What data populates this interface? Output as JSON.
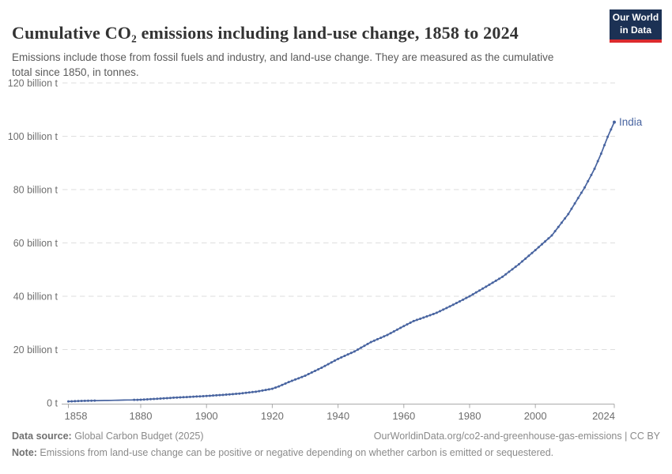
{
  "header": {
    "title": "Cumulative CO₂ emissions including land-use change, 1858 to 2024",
    "subtitle": "Emissions include those from fossil fuels and industry, and land-use change. They are measured as the cumulative total since 1850, in tonnes.",
    "logo": {
      "line1": "Our World",
      "line2": "in Data",
      "bg_color": "#1c3154",
      "stripe_color": "#dc2a2d"
    }
  },
  "chart_data": {
    "type": "line",
    "title": "Cumulative CO₂ emissions including land-use change, 1858 to 2024",
    "xlabel": "",
    "ylabel": "",
    "xlim": [
      1858,
      2024
    ],
    "ylim": [
      0,
      120
    ],
    "grid": "horizontal-dashed",
    "grid_color": "#dedede",
    "axis_color": "#a9a9a9",
    "tick_label_color": "#6e6e6e",
    "x_ticks": [
      1858,
      1880,
      1900,
      1920,
      1940,
      1960,
      1980,
      2000,
      2024
    ],
    "y_ticks": [
      {
        "value": 0,
        "label": "0 t"
      },
      {
        "value": 20,
        "label": "20 billion t"
      },
      {
        "value": 40,
        "label": "40 billion t"
      },
      {
        "value": 60,
        "label": "60 billion t"
      },
      {
        "value": 80,
        "label": "80 billion t"
      },
      {
        "value": 100,
        "label": "100 billion t"
      },
      {
        "value": 120,
        "label": "120 billion t"
      }
    ],
    "series": [
      {
        "name": "India",
        "color": "#4864a0",
        "unit": "billion t",
        "marker_gap_years": [
          1867,
          1877
        ],
        "points": [
          [
            1858,
            0.55
          ],
          [
            1861,
            0.7
          ],
          [
            1864,
            0.8
          ],
          [
            1866,
            0.85
          ],
          [
            1871,
            0.95
          ],
          [
            1874,
            1.05
          ],
          [
            1877,
            1.1
          ],
          [
            1880,
            1.2
          ],
          [
            1885,
            1.55
          ],
          [
            1890,
            1.95
          ],
          [
            1895,
            2.25
          ],
          [
            1900,
            2.6
          ],
          [
            1905,
            3.0
          ],
          [
            1910,
            3.5
          ],
          [
            1915,
            4.2
          ],
          [
            1920,
            5.3
          ],
          [
            1922,
            6.2
          ],
          [
            1925,
            7.8
          ],
          [
            1930,
            10.2
          ],
          [
            1935,
            13.2
          ],
          [
            1940,
            16.5
          ],
          [
            1945,
            19.3
          ],
          [
            1950,
            22.8
          ],
          [
            1955,
            25.5
          ],
          [
            1960,
            28.8
          ],
          [
            1963,
            30.7
          ],
          [
            1966,
            32.0
          ],
          [
            1970,
            33.8
          ],
          [
            1975,
            36.8
          ],
          [
            1980,
            40.0
          ],
          [
            1985,
            43.6
          ],
          [
            1990,
            47.3
          ],
          [
            1995,
            52.0
          ],
          [
            2000,
            57.3
          ],
          [
            2005,
            62.8
          ],
          [
            2010,
            70.8
          ],
          [
            2015,
            80.8
          ],
          [
            2018,
            87.8
          ],
          [
            2020,
            93.5
          ],
          [
            2022,
            99.8
          ],
          [
            2024,
            105.3
          ]
        ]
      }
    ]
  },
  "footer": {
    "source_label": "Data source:",
    "source_text": " Global Carbon Budget (2025)",
    "link_text": "OurWorldinData.org/co2-and-greenhouse-gas-emissions | CC BY",
    "note_label": "Note:",
    "note_text": " Emissions from land-use change can be positive or negative depending on whether carbon is emitted or sequestered."
  }
}
